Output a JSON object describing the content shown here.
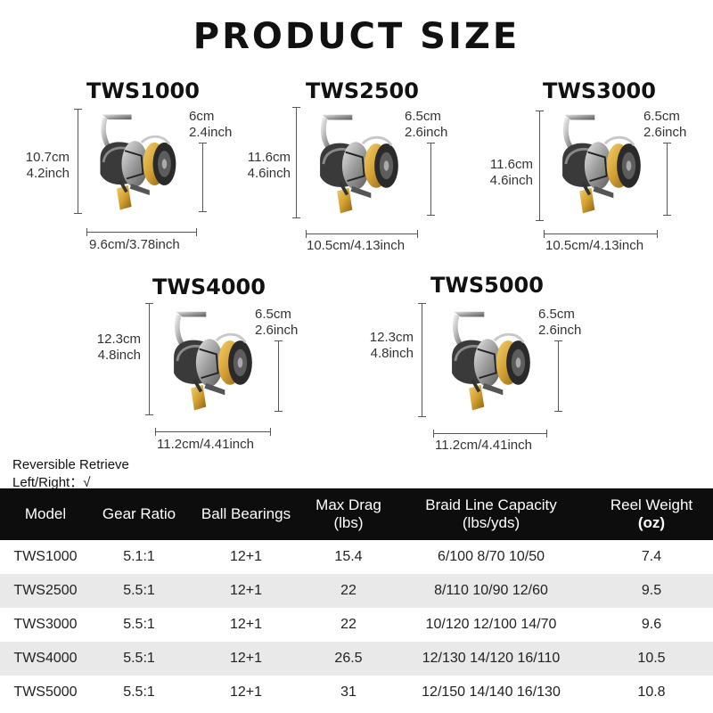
{
  "title": "PRODUCT SIZE",
  "models": [
    {
      "name": "TWS1000",
      "height_cm": "10.7cm",
      "height_in": "4.2inch",
      "spool_cm": "6cm",
      "spool_in": "2.4inch",
      "width": "9.6cm/3.78inch"
    },
    {
      "name": "TWS2500",
      "height_cm": "11.6cm",
      "height_in": "4.6inch",
      "spool_cm": "6.5cm",
      "spool_in": "2.6inch",
      "width": "10.5cm/4.13inch"
    },
    {
      "name": "TWS3000",
      "height_cm": "11.6cm",
      "height_in": "4.6inch",
      "spool_cm": "6.5cm",
      "spool_in": "2.6inch",
      "width": "10.5cm/4.13inch"
    },
    {
      "name": "TWS4000",
      "height_cm": "12.3cm",
      "height_in": "4.8inch",
      "spool_cm": "6.5cm",
      "spool_in": "2.6inch",
      "width": "11.2cm/4.41inch"
    },
    {
      "name": "TWS5000",
      "height_cm": "12.3cm",
      "height_in": "4.8inch",
      "spool_cm": "6.5cm",
      "spool_in": "2.6inch",
      "width": "11.2cm/4.41inch"
    }
  ],
  "note": {
    "line1": "Reversible Retrieve",
    "line2": "Left/Right：√"
  },
  "table": {
    "headers": [
      {
        "line1": "Model",
        "line2": ""
      },
      {
        "line1": "Gear Ratio",
        "line2": ""
      },
      {
        "line1": "Ball Bearings",
        "line2": ""
      },
      {
        "line1": "Max Drag",
        "line2": "(lbs)"
      },
      {
        "line1": "Braid Line Capacity",
        "line2": "(lbs/yds)"
      },
      {
        "line1": "Reel Weight",
        "line2": "(oz)"
      }
    ],
    "rows": [
      [
        "TWS1000",
        "5.1:1",
        "12+1",
        "15.4",
        "6/100 8/70 10/50",
        "7.4"
      ],
      [
        "TWS2500",
        "5.5:1",
        "12+1",
        "22",
        "8/110 10/90 12/60",
        "9.5"
      ],
      [
        "TWS3000",
        "5.5:1",
        "12+1",
        "22",
        "10/120 12/100 14/70",
        "9.6"
      ],
      [
        "TWS4000",
        "5.5:1",
        "12+1",
        "26.5",
        "12/130 14/120 16/110",
        "10.5"
      ],
      [
        "TWS5000",
        "5.5:1",
        "12+1",
        "31",
        "12/150 14/140 16/130",
        "10.8"
      ]
    ]
  },
  "colors": {
    "header_bg": "#0d0d0d",
    "alt_row": "#e9e9e9",
    "spool_gold": "#d4a032",
    "frame_silver": "#b8b8b8"
  }
}
